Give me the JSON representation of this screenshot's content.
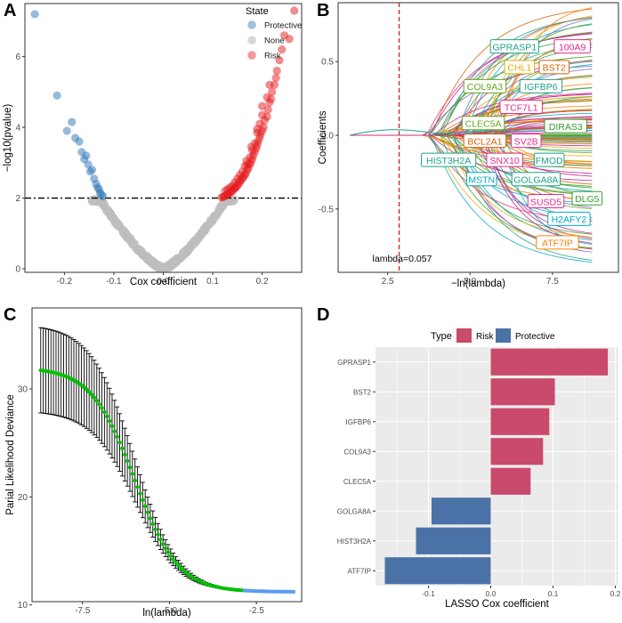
{
  "panels": {
    "A": {
      "letter": "A"
    },
    "B": {
      "letter": "B"
    },
    "C": {
      "letter": "C"
    },
    "D": {
      "letter": "D"
    }
  },
  "chart_data": [
    {
      "panel": "A",
      "type": "scatter",
      "title": "",
      "xlabel": "Cox coefficient",
      "ylabel": "−log10(pvalue)",
      "xlim": [
        -0.28,
        0.28
      ],
      "ylim": [
        -0.1,
        7.5
      ],
      "xticks": [
        {
          "v": -0.2,
          "l": "-0.2"
        },
        {
          "v": -0.1,
          "l": "-0.1"
        },
        {
          "v": 0.0,
          "l": "0.0"
        },
        {
          "v": 0.1,
          "l": "0.1"
        },
        {
          "v": 0.2,
          "l": "0.2"
        }
      ],
      "yticks": [
        {
          "v": 0,
          "l": "0"
        },
        {
          "v": 2,
          "l": "2"
        },
        {
          "v": 4,
          "l": "4"
        },
        {
          "v": 6,
          "l": "6"
        }
      ],
      "threshold_y": 2,
      "legend": {
        "title": "State",
        "position": "top-right",
        "items": [
          {
            "label": "Protective",
            "color": "#2e75b6"
          },
          {
            "label": "None",
            "color": "#bdbdbd"
          },
          {
            "label": "Risk",
            "color": "#e41a1c"
          }
        ]
      },
      "series": [
        {
          "name": "Protective",
          "color": "#2e75b6",
          "points": [
            [
              -0.26,
              7.2
            ],
            [
              -0.215,
              4.9
            ],
            [
              -0.195,
              3.9
            ],
            [
              -0.185,
              4.15
            ],
            [
              -0.178,
              3.7
            ],
            [
              -0.17,
              3.6
            ],
            [
              -0.165,
              3.3
            ],
            [
              -0.16,
              3.1
            ],
            [
              -0.156,
              3.2
            ],
            [
              -0.152,
              2.95
            ],
            [
              -0.148,
              2.75
            ],
            [
              -0.144,
              2.8
            ],
            [
              -0.14,
              2.55
            ],
            [
              -0.136,
              2.4
            ],
            [
              -0.133,
              2.3
            ],
            [
              -0.13,
              2.25
            ],
            [
              -0.128,
              2.15
            ],
            [
              -0.125,
              2.1
            ],
            [
              -0.122,
              2.05
            ]
          ]
        },
        {
          "name": "Risk",
          "color": "#e41a1c",
          "points": [
            [
              0.265,
              7.3
            ],
            [
              0.255,
              6.5
            ],
            [
              0.245,
              6.6
            ],
            [
              0.24,
              6.2
            ],
            [
              0.235,
              5.9
            ],
            [
              0.23,
              5.6
            ],
            [
              0.228,
              5.4
            ],
            [
              0.225,
              5.2
            ],
            [
              0.22,
              5.0
            ],
            [
              0.218,
              4.8
            ],
            [
              0.215,
              4.7
            ],
            [
              0.212,
              4.5
            ],
            [
              0.21,
              4.3
            ],
            [
              0.205,
              4.2
            ],
            [
              0.203,
              4.0
            ],
            [
              0.2,
              3.9
            ],
            [
              0.197,
              3.8
            ],
            [
              0.195,
              3.7
            ],
            [
              0.192,
              3.6
            ],
            [
              0.19,
              3.5
            ],
            [
              0.188,
              3.4
            ],
            [
              0.185,
              3.3
            ],
            [
              0.182,
              3.2
            ],
            [
              0.18,
              3.1
            ],
            [
              0.177,
              3.0
            ],
            [
              0.175,
              2.95
            ],
            [
              0.172,
              2.85
            ],
            [
              0.17,
              2.8
            ],
            [
              0.167,
              2.7
            ],
            [
              0.165,
              2.65
            ],
            [
              0.162,
              2.6
            ],
            [
              0.16,
              2.55
            ],
            [
              0.157,
              2.5
            ],
            [
              0.155,
              2.45
            ],
            [
              0.152,
              2.4
            ],
            [
              0.15,
              2.35
            ],
            [
              0.147,
              2.3
            ],
            [
              0.145,
              2.28
            ],
            [
              0.142,
              2.25
            ],
            [
              0.14,
              2.2
            ],
            [
              0.137,
              2.18
            ],
            [
              0.135,
              2.15
            ],
            [
              0.132,
              2.12
            ],
            [
              0.13,
              2.1
            ],
            [
              0.127,
              2.08
            ],
            [
              0.124,
              2.05
            ],
            [
              0.121,
              2.03
            ],
            [
              0.118,
              2.02
            ],
            [
              0.2,
              4.6
            ],
            [
              0.195,
              4.1
            ],
            [
              0.19,
              3.85
            ],
            [
              0.185,
              3.55
            ],
            [
              0.18,
              3.35
            ],
            [
              0.175,
              3.15
            ],
            [
              0.17,
              2.95
            ],
            [
              0.165,
              2.9
            ],
            [
              0.16,
              2.75
            ],
            [
              0.155,
              2.65
            ],
            [
              0.15,
              2.55
            ],
            [
              0.145,
              2.45
            ],
            [
              0.14,
              2.35
            ],
            [
              0.135,
              2.3
            ],
            [
              0.13,
              2.25
            ],
            [
              0.125,
              2.2
            ],
            [
              0.215,
              5.2
            ],
            [
              0.21,
              4.85
            ],
            [
              0.2,
              4.35
            ],
            [
              0.19,
              3.95
            ],
            [
              0.178,
              3.45
            ],
            [
              0.168,
              3.05
            ]
          ]
        }
      ]
    },
    {
      "panel": "B",
      "type": "line",
      "title": "",
      "xlabel": "−ln(lambda)",
      "ylabel": "Coefficients",
      "xlim": [
        1.0,
        9.5
      ],
      "ylim": [
        -0.93,
        0.9
      ],
      "xticks": [
        {
          "v": 2.5,
          "l": "2.5"
        },
        {
          "v": 5.0,
          "l": "5.0"
        },
        {
          "v": 7.5,
          "l": "7.5"
        }
      ],
      "yticks": [
        {
          "v": -0.5,
          "l": "-0.5"
        },
        {
          "v": 0.0,
          "l": "0.0"
        },
        {
          "v": 0.5,
          "l": "0.5"
        }
      ],
      "vline_x": 2.85,
      "annotation": "lambda=0.057",
      "path_end_x": 8.7,
      "paths_colors": [
        "#1fa187",
        "#e7298a",
        "#d95f02",
        "#66a61e",
        "#e6ab02",
        "#7570b3",
        "#00a9c9",
        "#33a02c",
        "#ff7f00",
        "#c51b8a"
      ],
      "gene_labels": [
        {
          "text": "GPRASP1",
          "x": 6.35,
          "y": 0.6,
          "color": "#1fa187"
        },
        {
          "text": "100A9",
          "x": 8.1,
          "y": 0.6,
          "color": "#e7298a"
        },
        {
          "text": "CHL1",
          "x": 6.5,
          "y": 0.46,
          "color": "#e6ab02"
        },
        {
          "text": "BST2",
          "x": 7.55,
          "y": 0.46,
          "color": "#d95f02"
        },
        {
          "text": "COL9A3",
          "x": 5.45,
          "y": 0.33,
          "color": "#66a61e"
        },
        {
          "text": "IGFBP6",
          "x": 7.15,
          "y": 0.33,
          "color": "#1fa187"
        },
        {
          "text": "TCF7L1",
          "x": 6.55,
          "y": 0.19,
          "color": "#e7298a"
        },
        {
          "text": "CLEC5A",
          "x": 5.4,
          "y": 0.08,
          "color": "#66a61e"
        },
        {
          "text": "DIRAS3",
          "x": 7.9,
          "y": 0.06,
          "color": "#33a02c"
        },
        {
          "text": "BCL2A1",
          "x": 5.45,
          "y": -0.04,
          "color": "#d95f02"
        },
        {
          "text": "SV2B",
          "x": 6.7,
          "y": -0.04,
          "color": "#e7298a"
        },
        {
          "text": "HIST3H2A",
          "x": 4.35,
          "y": -0.17,
          "color": "#1fa187"
        },
        {
          "text": "SNX10",
          "x": 6.05,
          "y": -0.17,
          "color": "#e7298a"
        },
        {
          "text": "FMOD",
          "x": 7.4,
          "y": -0.17,
          "color": "#1fa187"
        },
        {
          "text": "MSTN",
          "x": 5.35,
          "y": -0.3,
          "color": "#00a9c9"
        },
        {
          "text": "GOLGA8A",
          "x": 7.0,
          "y": -0.3,
          "color": "#1fa187"
        },
        {
          "text": "SUSD5",
          "x": 7.3,
          "y": -0.45,
          "color": "#e7298a"
        },
        {
          "text": "DLG5",
          "x": 8.55,
          "y": -0.43,
          "color": "#33a02c"
        },
        {
          "text": "H2AFY2",
          "x": 8.0,
          "y": -0.57,
          "color": "#00a9c9"
        },
        {
          "text": "ATF7IP",
          "x": 7.65,
          "y": -0.73,
          "color": "#ff7f00"
        }
      ]
    },
    {
      "panel": "C",
      "type": "line",
      "title": "",
      "xlabel": "ln(lambda)",
      "ylabel": "Parial Likelihood Deviance",
      "xlim": [
        -8.95,
        -1.2
      ],
      "ylim": [
        10.3,
        37.5
      ],
      "xticks": [
        {
          "v": -7.5,
          "l": "-7.5"
        },
        {
          "v": -5.0,
          "l": "-5.0"
        },
        {
          "v": -2.5,
          "l": "-2.5"
        }
      ],
      "yticks": [
        {
          "v": 10,
          "l": "10"
        },
        {
          "v": 20,
          "l": "20"
        },
        {
          "v": 30,
          "l": "30"
        }
      ],
      "x_range": [
        -8.7,
        -1.45
      ],
      "n_points": 100,
      "optimal_lambda_log": -2.85,
      "selected_color": "#00c000",
      "other_color": "#5b9cf0",
      "curve": {
        "min_deviance": 11.2,
        "max_deviance": 32.0,
        "center": -6.0,
        "steepness": 1.6,
        "error_half_width_at_left": 4.0
      }
    },
    {
      "panel": "D",
      "type": "bar",
      "title": "",
      "xlabel": "LASSO Cox coefficient",
      "ylabel": "",
      "xlim": [
        -0.185,
        0.205
      ],
      "xticks": [
        {
          "v": -0.1,
          "l": "-0.1"
        },
        {
          "v": 0.0,
          "l": "0.0"
        },
        {
          "v": 0.1,
          "l": "0.1"
        },
        {
          "v": 0.2,
          "l": "0.2"
        }
      ],
      "legend": {
        "title": "Type",
        "position": "top",
        "items": [
          {
            "label": "Risk",
            "color": "#c94a6b"
          },
          {
            "label": "Protective",
            "color": "#4a72a6"
          }
        ]
      },
      "categories": [
        "GPRASP1",
        "BST2",
        "IGFBP6",
        "COL9A3",
        "CLEC5A",
        "GOLGA8A",
        "HIST3H2A",
        "ATF7IP"
      ],
      "values": [
        0.188,
        0.103,
        0.094,
        0.084,
        0.064,
        -0.095,
        -0.12,
        -0.17
      ]
    }
  ]
}
